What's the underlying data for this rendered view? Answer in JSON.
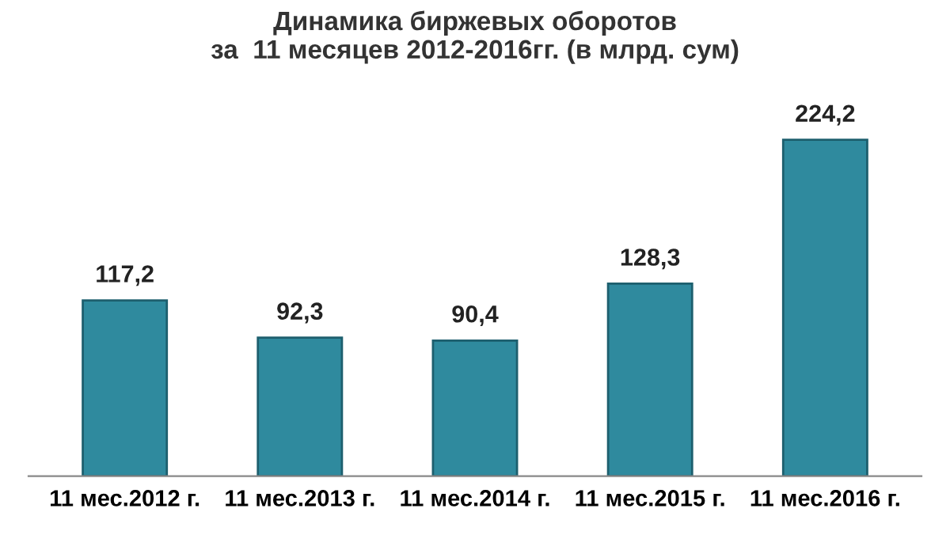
{
  "chart_data": {
    "type": "bar",
    "title": "Динамика биржевых оборотов\nза  11 месяцев 2012-2016гг. (в млрд. сум)",
    "categories": [
      "11 мес.2012 г.",
      "11 мес.2013 г.",
      "11 мес.2014 г.",
      "11 мес.2015 г.",
      "11 мес.2016 г."
    ],
    "values": [
      117.2,
      92.3,
      90.4,
      128.3,
      224.2
    ],
    "color": "#2f8a9e",
    "value_labels": [
      "117,2",
      "92,3",
      "90,4",
      "128,3",
      "224,2"
    ],
    "grid": false,
    "legend": false
  }
}
